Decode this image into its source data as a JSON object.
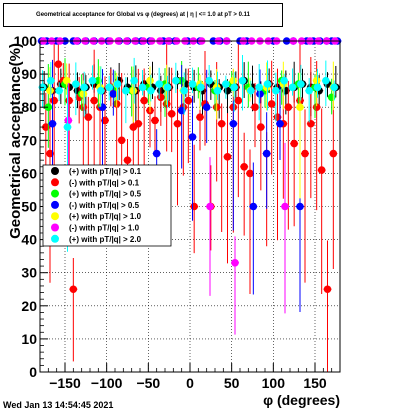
{
  "title": "Geometrical acceptance for Global vs φ (degrees) at | η | <= 1.0 at pT > 0.11",
  "datestamp": "Wed Jan 13 14:54:45 2021",
  "chart_data": {
    "type": "scatter",
    "title": "Geometrical acceptance for Global vs φ (degrees) at | η | <= 1.0 at pT > 0.11",
    "xlabel": "φ (degrees)",
    "ylabel": "Geometrical acceptance(%)",
    "xlim": [
      -180,
      180
    ],
    "ylim": [
      0,
      100
    ],
    "x_ticks": [
      -150,
      -100,
      -50,
      0,
      50,
      100,
      150
    ],
    "x_tick_labels": [
      "−150",
      "−100",
      "−50",
      "0",
      "50",
      "100",
      "150"
    ],
    "y_ticks": [
      0,
      10,
      20,
      30,
      40,
      50,
      60,
      70,
      80,
      90,
      100
    ],
    "grid": true,
    "legend_position": "middle-left",
    "series": [
      {
        "name": "(+) with pT/|q| > 0.1",
        "color": "#000000",
        "x": [
          -175,
          -165,
          -155,
          -145,
          -135,
          -125,
          -115,
          -105,
          -95,
          -85,
          -75,
          -65,
          -55,
          -45,
          -35,
          -25,
          -15,
          -5,
          5,
          15,
          25,
          35,
          45,
          55,
          65,
          75,
          85,
          95,
          105,
          115,
          125,
          135,
          145,
          155,
          165,
          175
        ],
        "y": [
          86,
          85,
          87,
          86,
          85,
          86,
          87,
          85,
          86,
          88,
          86,
          85,
          87,
          86,
          85,
          86,
          88,
          87,
          86,
          85,
          87,
          86,
          85,
          86,
          88,
          86,
          85,
          87,
          86,
          85,
          86,
          87,
          86,
          85,
          87,
          86
        ]
      },
      {
        "name": "(-) with pT/|q| > 0.1",
        "color": "#ff0000",
        "x": [
          -173,
          -168,
          -163,
          -158,
          -152,
          -145,
          -140,
          -133,
          -128,
          -122,
          -115,
          -108,
          -102,
          -95,
          -88,
          -82,
          -75,
          -68,
          -62,
          -55,
          -48,
          -42,
          -35,
          -28,
          -22,
          -15,
          -8,
          -2,
          5,
          12,
          18,
          25,
          32,
          38,
          45,
          52,
          58,
          65,
          72,
          78,
          85,
          92,
          98,
          105,
          112,
          118,
          125,
          132,
          138,
          145,
          152,
          158,
          165,
          172
        ],
        "y": [
          74,
          66,
          82,
          93,
          88,
          82,
          25,
          83,
          80,
          77,
          82,
          80,
          76,
          86,
          81,
          70,
          64,
          74,
          75,
          82,
          79,
          76,
          83,
          81,
          78,
          75,
          80,
          82,
          50,
          77,
          81,
          50,
          80,
          75,
          65,
          80,
          82,
          62,
          60,
          80,
          74,
          66,
          81,
          77,
          75,
          80,
          69,
          82,
          66,
          75,
          80,
          61,
          25,
          66
        ]
      },
      {
        "name": "(+) with pT/|q| > 0.5",
        "color": "#00ff00",
        "x": [
          -170,
          -150,
          -130,
          -110,
          -90,
          -70,
          -50,
          -30,
          -10,
          10,
          30,
          50,
          70,
          90,
          110,
          130,
          150,
          170
        ],
        "y": [
          80,
          87,
          84,
          88,
          86,
          85,
          86,
          87,
          88,
          86,
          85,
          87,
          86,
          85,
          88,
          87,
          86,
          83
        ]
      },
      {
        "name": "(-) with pT/|q| > 0.5",
        "color": "#0000ff",
        "x": [
          -178,
          -172,
          -165,
          -160,
          -150,
          -140,
          -135,
          -125,
          -115,
          -105,
          -98,
          -92,
          -85,
          -75,
          -65,
          -58,
          -48,
          -40,
          -32,
          -25,
          -18,
          -10,
          -3,
          3,
          12,
          20,
          28,
          36,
          44,
          52,
          60,
          68,
          76,
          84,
          92,
          100,
          108,
          116,
          124,
          132,
          140,
          148,
          156,
          164,
          170,
          177
        ],
        "y": [
          100,
          100,
          75,
          100,
          100,
          100,
          100,
          100,
          100,
          80,
          100,
          84,
          100,
          100,
          100,
          100,
          100,
          66,
          100,
          100,
          100,
          79,
          100,
          71,
          100,
          80,
          100,
          100,
          100,
          75,
          100,
          100,
          50,
          84,
          66,
          100,
          75,
          100,
          100,
          50,
          100,
          100,
          100,
          100,
          100,
          100
        ]
      },
      {
        "name": "(+) with pT/|q| > 1.0",
        "color": "#ffff00",
        "x": [
          -168,
          -148,
          -128,
          -108,
          -88,
          -68,
          -48,
          -28,
          -8,
          12,
          32,
          52,
          72,
          92,
          112,
          132,
          152,
          172
        ],
        "y": [
          85,
          88,
          84,
          86,
          87,
          85,
          88,
          86,
          85,
          87,
          86,
          88,
          85,
          86,
          87,
          80,
          88,
          86
        ]
      },
      {
        "name": "(-) with pT/|q| > 1.0",
        "color": "#ff00ff",
        "x": [
          -176,
          -166,
          -156,
          -146,
          -136,
          -126,
          -116,
          -106,
          -96,
          -86,
          -76,
          -66,
          -56,
          -46,
          -36,
          -26,
          -16,
          -6,
          4,
          14,
          24,
          34,
          44,
          54,
          64,
          74,
          84,
          94,
          104,
          114,
          124,
          134,
          144,
          154,
          164,
          174
        ],
        "y": [
          100,
          100,
          100,
          76,
          100,
          100,
          100,
          100,
          100,
          100,
          100,
          100,
          100,
          100,
          100,
          100,
          100,
          100,
          100,
          100,
          50,
          100,
          100,
          33,
          100,
          100,
          100,
          100,
          100,
          50,
          100,
          100,
          100,
          100,
          100,
          100
        ]
      },
      {
        "name": "(+) with pT/|q| > 2.0",
        "color": "#00ffff",
        "x": [
          -177,
          -167,
          -157,
          -147,
          -137,
          -127,
          -117,
          -107,
          -97,
          -87,
          -77,
          -67,
          -57,
          -47,
          -37,
          -27,
          -17,
          -7,
          3,
          13,
          23,
          33,
          43,
          53,
          63,
          73,
          83,
          93,
          103,
          113,
          123,
          133,
          143,
          153,
          163,
          173
        ],
        "y": [
          86,
          88,
          85,
          74,
          87,
          86,
          88,
          85,
          86,
          87,
          85,
          88,
          86,
          85,
          87,
          86,
          88,
          85,
          87,
          86,
          88,
          85,
          87,
          86,
          88,
          85,
          86,
          87,
          85,
          88,
          86,
          87,
          85,
          86,
          88,
          86
        ]
      }
    ]
  }
}
